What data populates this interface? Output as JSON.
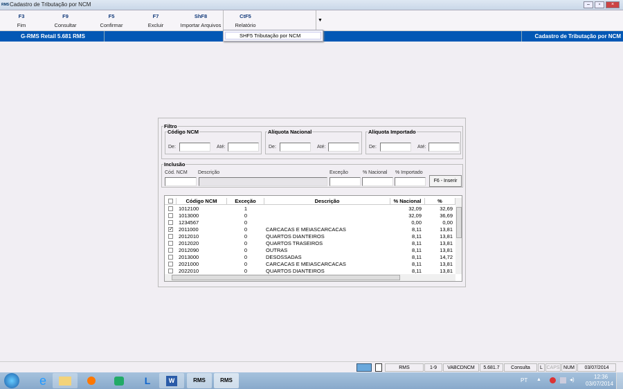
{
  "window": {
    "title": "Cadastro de Tributação por NCM",
    "logo": "RMS"
  },
  "toolbar": [
    {
      "key": "F3",
      "label": "Fim"
    },
    {
      "key": "F9",
      "label": "Consultar"
    },
    {
      "key": "F5",
      "label": "Confirmar"
    },
    {
      "key": "F7",
      "label": "Excluir"
    },
    {
      "key": "ShF8",
      "label": "Importar Arquivos"
    },
    {
      "key": "CtF5",
      "label": "Relatório"
    }
  ],
  "dropdown_menu": {
    "item": "SHF5  Tributação por NCM"
  },
  "bluebar": {
    "app": "G-RMS Retail 5.681 RMS",
    "screen": "Cadastro de Tributação por NCM"
  },
  "filtro": {
    "title": "Filtro",
    "codigo": {
      "title": "Código NCM",
      "de": "De:",
      "ate": "Até:"
    },
    "nacional": {
      "title": "Alíquota Nacional",
      "de": "De:",
      "ate": "Até:"
    },
    "importado": {
      "title": "Alíquota Importado",
      "de": "De:",
      "ate": "Até:"
    }
  },
  "inclusao": {
    "title": "Inclusão",
    "cod": "Cód. NCM",
    "desc": "Descrição",
    "excecao": "Exceção",
    "nacional": "% Nacional",
    "importado": "% Importado",
    "button": "F6 - Inserir"
  },
  "grid": {
    "columns": [
      "Código NCM",
      "Exceção",
      "Descrição",
      "% Nacional",
      "% Importado"
    ],
    "rows": [
      {
        "checked": false,
        "codigo": "1012100",
        "excecao": "1",
        "descricao": "",
        "nacional": "32,09",
        "importado": "32,69"
      },
      {
        "checked": false,
        "codigo": "1013000",
        "excecao": "0",
        "descricao": "",
        "nacional": "32,09",
        "importado": "36,69"
      },
      {
        "checked": false,
        "codigo": "1234567",
        "excecao": "0",
        "descricao": "",
        "nacional": "0,00",
        "importado": "0,00"
      },
      {
        "checked": true,
        "codigo": "2011000",
        "excecao": "0",
        "descricao": "CARCACAS E MEIASCARCACAS",
        "nacional": "8,11",
        "importado": "13,81"
      },
      {
        "checked": false,
        "codigo": "2012010",
        "excecao": "0",
        "descricao": "QUARTOS DIANTEIROS",
        "nacional": "8,11",
        "importado": "13,81"
      },
      {
        "checked": false,
        "codigo": "2012020",
        "excecao": "0",
        "descricao": "QUARTOS TRASEIROS",
        "nacional": "8,11",
        "importado": "13,81"
      },
      {
        "checked": false,
        "codigo": "2012090",
        "excecao": "0",
        "descricao": "OUTRAS",
        "nacional": "8,11",
        "importado": "13,81"
      },
      {
        "checked": false,
        "codigo": "2013000",
        "excecao": "0",
        "descricao": "DESOSSADAS",
        "nacional": "8,11",
        "importado": "14,72"
      },
      {
        "checked": false,
        "codigo": "2021000",
        "excecao": "0",
        "descricao": "CARCACAS E MEIASCARCACAS",
        "nacional": "8,11",
        "importado": "13,81"
      },
      {
        "checked": false,
        "codigo": "2022010",
        "excecao": "0",
        "descricao": "QUARTOS DIANTEIROS",
        "nacional": "8,11",
        "importado": "13,81"
      }
    ]
  },
  "status": [
    "RMS",
    "1-9",
    "VABCDNCM",
    "5.681.7",
    "Consulta",
    "L",
    "CAPS",
    "NUM",
    "03/07/2014"
  ],
  "taskbar": {
    "lang": "PT",
    "time": "12:36",
    "date": "03/07/2014",
    "apps": [
      "start",
      "internet-explorer",
      "file-explorer",
      "media-player",
      "network-app",
      "lync",
      "word",
      "RMS",
      "RMS"
    ]
  },
  "colors": {
    "bluebar": "#0358b5",
    "background": "#f1eef3"
  }
}
